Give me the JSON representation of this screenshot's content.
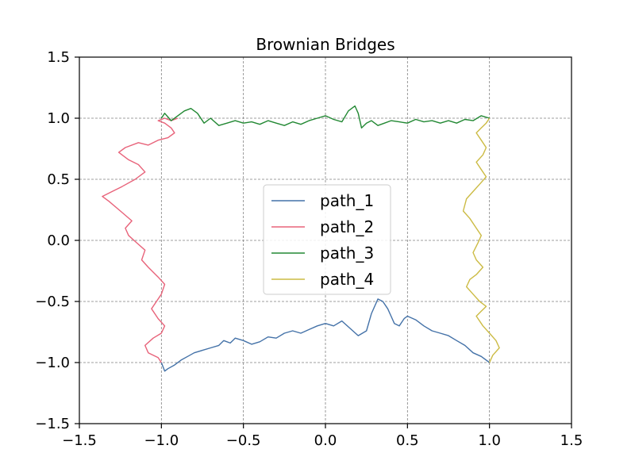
{
  "chart_data": {
    "type": "line",
    "title": "Brownian Bridges",
    "xlabel": "",
    "ylabel": "",
    "xlim": [
      -1.5,
      1.5
    ],
    "ylim": [
      -1.5,
      1.5
    ],
    "xticks": [
      -1.5,
      -1.0,
      -0.5,
      0.0,
      0.5,
      1.0,
      1.5
    ],
    "yticks": [
      -1.5,
      -1.0,
      -0.5,
      0.0,
      0.5,
      1.0,
      1.5
    ],
    "xtick_labels": [
      "−1.5",
      "−1.0",
      "−0.5",
      "0.0",
      "0.5",
      "1.0",
      "1.5"
    ],
    "ytick_labels": [
      "−1.5",
      "−1.0",
      "−0.5",
      "0.0",
      "0.5",
      "1.0",
      "1.5"
    ],
    "grid": true,
    "legend_position": "center",
    "series": [
      {
        "name": "path_1",
        "color": "#4472a8",
        "x": [
          -1.0,
          -0.98,
          -0.96,
          -0.92,
          -0.88,
          -0.84,
          -0.8,
          -0.75,
          -0.7,
          -0.65,
          -0.62,
          -0.58,
          -0.55,
          -0.5,
          -0.45,
          -0.4,
          -0.35,
          -0.3,
          -0.25,
          -0.2,
          -0.15,
          -0.1,
          -0.05,
          0.0,
          0.05,
          0.1,
          0.15,
          0.2,
          0.25,
          0.28,
          0.32,
          0.35,
          0.38,
          0.4,
          0.42,
          0.45,
          0.48,
          0.5,
          0.55,
          0.6,
          0.65,
          0.7,
          0.75,
          0.8,
          0.85,
          0.9,
          0.95,
          1.0
        ],
        "y": [
          -1.0,
          -1.07,
          -1.05,
          -1.02,
          -0.98,
          -0.95,
          -0.92,
          -0.9,
          -0.88,
          -0.86,
          -0.82,
          -0.84,
          -0.8,
          -0.82,
          -0.85,
          -0.83,
          -0.79,
          -0.8,
          -0.76,
          -0.74,
          -0.76,
          -0.73,
          -0.7,
          -0.68,
          -0.7,
          -0.66,
          -0.72,
          -0.78,
          -0.74,
          -0.6,
          -0.48,
          -0.5,
          -0.56,
          -0.62,
          -0.68,
          -0.7,
          -0.64,
          -0.62,
          -0.65,
          -0.7,
          -0.74,
          -0.76,
          -0.78,
          -0.82,
          -0.86,
          -0.92,
          -0.95,
          -1.0
        ]
      },
      {
        "name": "path_2",
        "color": "#e8637a",
        "x": [
          -1.0,
          -1.02,
          -1.08,
          -1.1,
          -1.05,
          -1.0,
          -0.98,
          -1.02,
          -1.06,
          -1.03,
          -1.0,
          -0.98,
          -1.02,
          -1.08,
          -1.12,
          -1.1,
          -1.15,
          -1.2,
          -1.22,
          -1.18,
          -1.25,
          -1.32,
          -1.36,
          -1.3,
          -1.24,
          -1.16,
          -1.1,
          -1.14,
          -1.2,
          -1.26,
          -1.22,
          -1.14,
          -1.08,
          -1.02,
          -0.96,
          -0.92,
          -0.94,
          -0.98,
          -1.02,
          -0.98,
          -0.94,
          -0.9
        ],
        "y": [
          -1.0,
          -0.96,
          -0.92,
          -0.86,
          -0.8,
          -0.76,
          -0.7,
          -0.64,
          -0.56,
          -0.5,
          -0.44,
          -0.36,
          -0.3,
          -0.22,
          -0.16,
          -0.08,
          -0.02,
          0.04,
          0.1,
          0.16,
          0.24,
          0.32,
          0.36,
          0.4,
          0.44,
          0.5,
          0.56,
          0.62,
          0.66,
          0.72,
          0.76,
          0.8,
          0.78,
          0.82,
          0.84,
          0.88,
          0.92,
          0.96,
          0.98,
          1.0,
          0.98,
          1.0
        ]
      },
      {
        "name": "path_3",
        "color": "#228833",
        "x": [
          -1.0,
          -0.98,
          -0.94,
          -0.9,
          -0.86,
          -0.82,
          -0.78,
          -0.74,
          -0.7,
          -0.65,
          -0.6,
          -0.55,
          -0.5,
          -0.45,
          -0.4,
          -0.35,
          -0.3,
          -0.25,
          -0.2,
          -0.15,
          -0.1,
          -0.05,
          0.0,
          0.05,
          0.1,
          0.14,
          0.18,
          0.2,
          0.22,
          0.25,
          0.28,
          0.32,
          0.36,
          0.4,
          0.45,
          0.5,
          0.55,
          0.6,
          0.65,
          0.7,
          0.75,
          0.8,
          0.85,
          0.9,
          0.95,
          1.0
        ],
        "y": [
          1.0,
          1.04,
          0.98,
          1.02,
          1.06,
          1.08,
          1.04,
          0.96,
          1.0,
          0.94,
          0.96,
          0.98,
          0.96,
          0.97,
          0.95,
          0.98,
          0.96,
          0.94,
          0.97,
          0.95,
          0.98,
          1.0,
          1.02,
          0.99,
          0.97,
          1.06,
          1.1,
          1.04,
          0.92,
          0.96,
          0.98,
          0.94,
          0.96,
          0.98,
          0.97,
          0.96,
          0.99,
          0.97,
          0.98,
          0.96,
          0.98,
          0.96,
          0.99,
          0.98,
          1.02,
          1.0
        ]
      },
      {
        "name": "path_4",
        "color": "#ccbb44",
        "x": [
          1.0,
          0.98,
          0.95,
          0.92,
          0.95,
          0.98,
          0.96,
          0.92,
          0.95,
          0.98,
          0.94,
          0.9,
          0.86,
          0.84,
          0.88,
          0.92,
          0.95,
          0.93,
          0.9,
          0.92,
          0.96,
          0.92,
          0.88,
          0.86,
          0.9,
          0.94,
          0.98,
          0.95,
          0.92,
          0.96,
          1.0,
          1.04,
          1.06,
          1.02,
          1.0
        ],
        "y": [
          1.0,
          0.96,
          0.92,
          0.88,
          0.82,
          0.76,
          0.7,
          0.64,
          0.58,
          0.52,
          0.46,
          0.4,
          0.34,
          0.24,
          0.18,
          0.1,
          0.04,
          -0.02,
          -0.1,
          -0.16,
          -0.22,
          -0.28,
          -0.32,
          -0.38,
          -0.44,
          -0.5,
          -0.54,
          -0.58,
          -0.62,
          -0.7,
          -0.76,
          -0.82,
          -0.88,
          -0.94,
          -1.0
        ]
      }
    ]
  }
}
